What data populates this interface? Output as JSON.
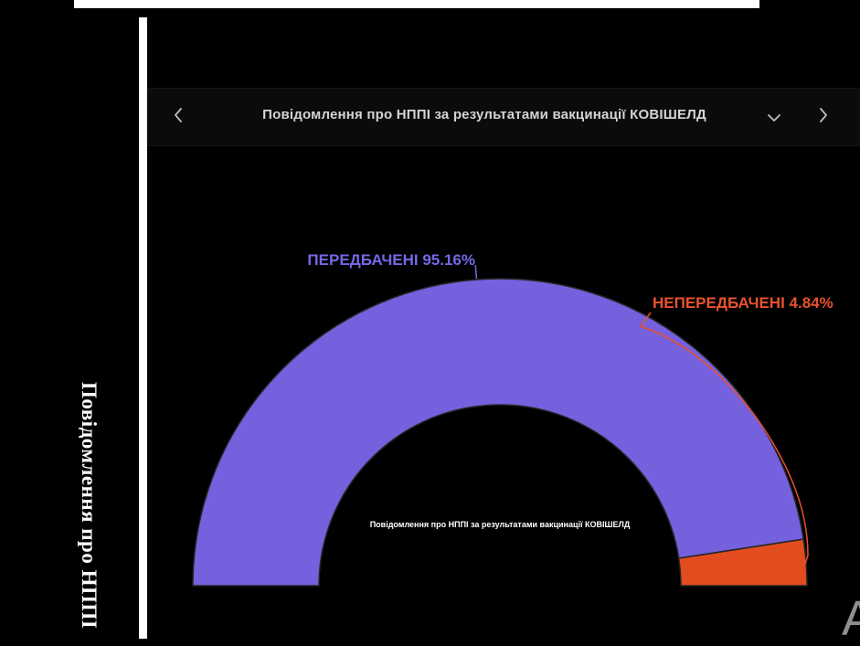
{
  "page": {
    "background": "#000000",
    "corner_letter": "A"
  },
  "document_behind": {
    "vertical_text": "Повідомлення про НППІ"
  },
  "header": {
    "title": "Повідомлення про НППІ за результатами вакцинації КОВІШЕЛД",
    "icons": {
      "prev": "chevron-left",
      "next": "chevron-right",
      "expand": "chevron-down"
    }
  },
  "chart_data": {
    "type": "pie",
    "variant": "half-donut",
    "title": "Повідомлення про НППІ за результатами вакцинації КОВІШЕЛД",
    "unit": "%",
    "start_angle": 180,
    "end_angle": 0,
    "legend_position": "none",
    "grid": false,
    "series": [
      {
        "name": "ПЕРЕДБАЧЕНІ",
        "value": 95.16,
        "label": "ПЕРЕДБАЧЕНІ 95.16%",
        "color": "#7560DD",
        "label_color": "#7668E8"
      },
      {
        "name": "НЕПЕРЕДБАЧЕНІ",
        "value": 4.84,
        "label": "НЕПЕРЕДБАЧЕНІ 4.84%",
        "color": "#E24C1F",
        "label_color": "#E8522E"
      }
    ],
    "center_label": "Повідомлення про НППІ за результатами вакцинації КОВІШЕЛД"
  }
}
